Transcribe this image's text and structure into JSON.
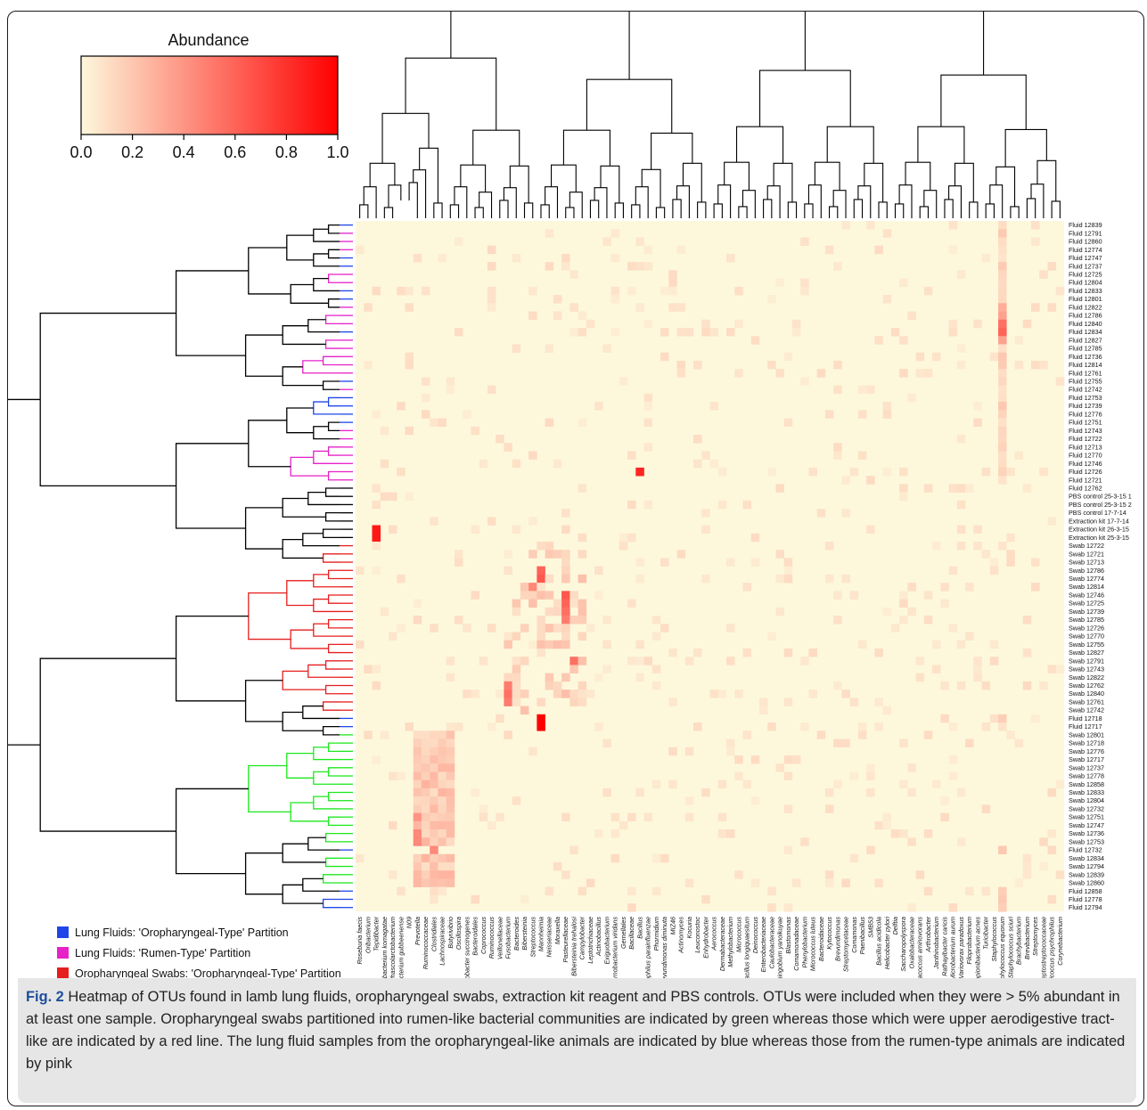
{
  "colors": {
    "lung_oro": "#1f45e8",
    "lung_rumen": "#e621c8",
    "swab_oro": "#e61e1e",
    "swab_rumen": "#1de81d",
    "heat_low": "#fdf8dc",
    "heat_high": "#ff0000"
  },
  "color_key": {
    "title": "Abundance",
    "ticks": [
      "0.0",
      "0.2",
      "0.4",
      "0.6",
      "0.8",
      "1.0"
    ]
  },
  "legend": [
    {
      "label": "Lung Fluids: 'Oropharyngeal-Type' Partition",
      "color": "#1f45e8"
    },
    {
      "label": "Lung Fluids: 'Rumen-Type' Partition",
      "color": "#e621c8"
    },
    {
      "label": "Oropharyngeal Swabs: 'Oropharyngeal-Type' Partition",
      "color": "#e61e1e"
    },
    {
      "label": "Oropharyngeal Swabs: 'Rumen-Type' Partition",
      "color": "#1de81d"
    }
  ],
  "caption": {
    "fig_label": "Fig. 2",
    "text": " Heatmap of OTUs found in lamb lung fluids, oropharyngeal swabs, extraction kit reagent and PBS controls. OTUs were included when they were > 5% abundant in at least one sample. Oropharyngeal swabs partitioned into rumen-like bacterial communities are indicated by green whereas those which were upper aerodigestive tract-like are indicated by a red line. The lung fluid samples from the oropharyngeal-like animals are indicated by blue whereas those from the rumen-type animals are indicated by pink"
  },
  "chart_data": {
    "type": "heatmap",
    "value_range": [
      0,
      1
    ],
    "rows": [
      "Fluid 12839",
      "Fluid 12791",
      "Fluid 12860",
      "Fluid 12774",
      "Fluid 12747",
      "Fluid 12737",
      "Fluid 12725",
      "Fluid 12804",
      "Fluid 12833",
      "Fluid 12801",
      "Fluid 12822",
      "Fluid 12786",
      "Fluid 12840",
      "Fluid 12834",
      "Fluid 12827",
      "Fluid 12785",
      "Fluid 12736",
      "Fluid 12814",
      "Fluid 12761",
      "Fluid 12755",
      "Fluid 12742",
      "Fluid 12753",
      "Fluid 12739",
      "Fluid 12776",
      "Fluid 12751",
      "Fluid 12743",
      "Fluid 12722",
      "Fluid 12713",
      "Fluid 12770",
      "Fluid 12746",
      "Fluid 12726",
      "Fluid 12721",
      "Fluid 12762",
      "PBS control 25-3-15 1",
      "PBS control 25-3-15 2",
      "PBS control 17-7-14",
      "Extraction kit 17-7-14",
      "Extraction kit 26-3-15",
      "Extraction kit 25-3-15",
      "Swab 12722",
      "Swab 12721",
      "Swab 12713",
      "Swab 12786",
      "Swab 12774",
      "Swab 12814",
      "Swab 12746",
      "Swab 12725",
      "Swab 12739",
      "Swab 12785",
      "Swab 12726",
      "Swab 12770",
      "Swab 12755",
      "Swab 12827",
      "Swab 12791",
      "Swab 12743",
      "Swab 12822",
      "Swab 12762",
      "Swab 12840",
      "Swab 12761",
      "Swab 12742",
      "Fluid 12718",
      "Fluid 12717",
      "Swab 12801",
      "Swab 12718",
      "Swab 12776",
      "Swab 12717",
      "Swab 12737",
      "Swab 12778",
      "Swab 12858",
      "Swab 12833",
      "Swab 12804",
      "Swab 12732",
      "Swab 12751",
      "Swab 12747",
      "Swab 12736",
      "Swab 12753",
      "Fluid 12732",
      "Swab 12834",
      "Swab 12794",
      "Swab 12839",
      "Swab 12860",
      "Fluid 12858",
      "Fluid 12778",
      "Fluid 12794"
    ],
    "row_groups": [
      "lung_oro",
      "lung_rumen",
      "lung_rumen",
      "lung_rumen",
      "lung_oro",
      "lung_oro",
      "lung_rumen",
      "lung_rumen",
      "lung_oro",
      "lung_oro",
      "lung_rumen",
      "lung_rumen",
      "lung_rumen",
      "lung_oro",
      "lung_rumen",
      "lung_rumen",
      "lung_rumen",
      "lung_rumen",
      "lung_rumen",
      "lung_oro",
      "lung_rumen",
      "lung_oro",
      "lung_oro",
      "lung_oro",
      "lung_oro",
      "lung_rumen",
      "lung_rumen",
      "lung_rumen",
      "lung_rumen",
      "lung_rumen",
      "lung_rumen",
      "lung_rumen",
      "control",
      "control",
      "control",
      "control",
      "control",
      "control",
      "control",
      "swab_oro",
      "swab_oro",
      "swab_oro",
      "swab_oro",
      "swab_oro",
      "swab_oro",
      "swab_oro",
      "swab_oro",
      "swab_oro",
      "swab_oro",
      "swab_oro",
      "swab_oro",
      "swab_oro",
      "swab_oro",
      "swab_oro",
      "swab_oro",
      "swab_oro",
      "swab_oro",
      "swab_oro",
      "swab_oro",
      "swab_oro",
      "lung_oro",
      "lung_oro",
      "swab_rumen",
      "swab_rumen",
      "swab_rumen",
      "swab_rumen",
      "swab_rumen",
      "swab_rumen",
      "swab_rumen",
      "swab_rumen",
      "swab_rumen",
      "swab_rumen",
      "swab_rumen",
      "swab_rumen",
      "swab_rumen",
      "swab_rumen",
      "lung_oro",
      "swab_rumen",
      "swab_rumen",
      "swab_rumen",
      "swab_rumen",
      "lung_oro",
      "lung_oro",
      "lung_oro"
    ],
    "columns": [
      "Roseburia faecis",
      "Oribacterium",
      "Tepidibacter",
      "Methylobacterium komagatae",
      "Phascolarctobacterium",
      "Microbacterium gubbeenense",
      "N09",
      "Prevotella",
      "Ruminococcaceae",
      "Clostridiales",
      "Lachnospiraceae",
      "Butyrivibrio",
      "Oscillospira",
      "Fibrobacter succinogenes",
      "Bacteroidales",
      "Coprococcus",
      "Ruminococcus",
      "Veillonellaceae",
      "Fusobacterium",
      "Bacteroides",
      "Bibersteinia",
      "Streptococcus",
      "Mannheimia",
      "Neisseriaceae",
      "Moraxella",
      "Pasteurellaceae",
      "Bibersteinia trehalosi",
      "Campylobacter",
      "Leptotrichiaceae",
      "Actinobacillus",
      "Exiguobacterium",
      "Carnobacterium viridans",
      "Gemellales",
      "Bacillaceae",
      "Bacillus",
      "Haemophilus parainfluenzae",
      "Phormidium",
      "Brevundimonas diminuta",
      "MIZ46",
      "Actinomyces",
      "Kocuria",
      "Leuconostoc",
      "Enhydrobacter",
      "Aerococcus",
      "Dermabacteraceae",
      "Methylobacterium",
      "Micrococcus",
      "Bacillus longiquaesitum",
      "Deinococcus",
      "Enterobacteriaceae",
      "Caulobacteraceae",
      "Sphingobium yanoikuyae",
      "Blastomonas",
      "Comamonadaceae",
      "Phenylobacterium",
      "Micrococcus luteus",
      "Bacteroidaceae",
      "Kytococcus",
      "Brevundimonas",
      "Streptomycetaceae",
      "Comamonas",
      "Paenibacillus",
      "SMB53",
      "Bacillus acidicola",
      "Helicobacter pylori",
      "Delftia",
      "Saccharopolyspora",
      "Oxalobacteraceae",
      "Paracoccus aminovorans",
      "Arthrobacter",
      "Janthinobacterium",
      "Rathayibacter caricis",
      "Microbacterium aurum",
      "Variovorax paradoxus",
      "Filoprobacterium",
      "Propionibacterium acnes",
      "Turicibacter",
      "Staphylococcus",
      "Staphylococcus equorum",
      "Staphylococcus sciuri",
      "Brachybacterium",
      "Brevibacterium",
      "Streptomyces",
      "Peptostreptococcaceae",
      "Jeotgalicoccus psychrophilus",
      "Corynebacterium"
    ],
    "hot_cells": [
      {
        "row": "Fluid 12822",
        "column": "Staphylococcus equorum",
        "value": 0.3
      },
      {
        "row": "Fluid 12786",
        "column": "Staphylococcus equorum",
        "value": 0.35
      },
      {
        "row": "Fluid 12840",
        "column": "Staphylococcus equorum",
        "value": 0.55
      },
      {
        "row": "Fluid 12834",
        "column": "Staphylococcus equorum",
        "value": 0.6
      },
      {
        "row": "Fluid 12827",
        "column": "Staphylococcus equorum",
        "value": 0.35
      },
      {
        "row": "Fluid 12726",
        "column": "Bacillus",
        "value": 0.85
      },
      {
        "row": "Extraction kit 26-3-15",
        "column": "Tepidibacter",
        "value": 0.9
      },
      {
        "row": "Extraction kit 25-3-15",
        "column": "Tepidibacter",
        "value": 0.9
      },
      {
        "row": "Swab 12786",
        "column": "Mannheimia",
        "value": 0.6
      },
      {
        "row": "Swab 12774",
        "column": "Mannheimia",
        "value": 0.65
      },
      {
        "row": "Swab 12814",
        "column": "Streptococcus",
        "value": 0.45
      },
      {
        "row": "Swab 12746",
        "column": "Pasteurellaceae",
        "value": 0.65
      },
      {
        "row": "Swab 12725",
        "column": "Pasteurellaceae",
        "value": 0.6
      },
      {
        "row": "Swab 12739",
        "column": "Pasteurellaceae",
        "value": 0.55
      },
      {
        "row": "Swab 12785",
        "column": "Pasteurellaceae",
        "value": 0.5
      },
      {
        "row": "Swab 12791",
        "column": "Bibersteinia trehalosi",
        "value": 0.55
      },
      {
        "row": "Swab 12762",
        "column": "Fusobacterium",
        "value": 0.5
      },
      {
        "row": "Swab 12840",
        "column": "Fusobacterium",
        "value": 0.55
      },
      {
        "row": "Swab 12761",
        "column": "Fusobacterium",
        "value": 0.5
      },
      {
        "row": "Fluid 12718",
        "column": "Mannheimia",
        "value": 1.0
      },
      {
        "row": "Fluid 12717",
        "column": "Mannheimia",
        "value": 1.0
      },
      {
        "row": "Swab 12751",
        "column": "Prevotella",
        "value": 0.4
      },
      {
        "row": "Swab 12736",
        "column": "Prevotella",
        "value": 0.45
      },
      {
        "row": "Swab 12753",
        "column": "Prevotella",
        "value": 0.45
      },
      {
        "row": "Fluid 12732",
        "column": "Clostridiales",
        "value": 0.45
      }
    ]
  }
}
